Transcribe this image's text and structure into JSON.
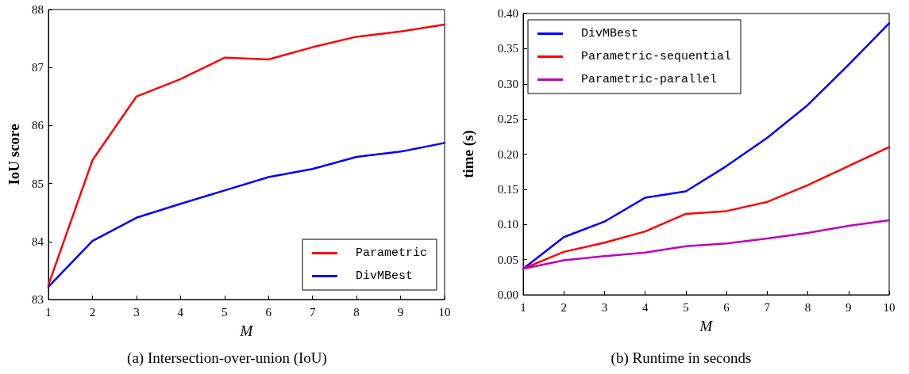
{
  "chart_data": [
    {
      "type": "line",
      "title": "(a) Intersection-over-union (IoU)",
      "xlabel": "M",
      "ylabel": "IoU score",
      "x": [
        1,
        2,
        3,
        4,
        5,
        6,
        7,
        8,
        9,
        10
      ],
      "series": [
        {
          "name": "Parametric",
          "color": "#ff0000",
          "values": [
            83.25,
            85.4,
            86.5,
            86.8,
            87.17,
            87.14,
            87.35,
            87.53,
            87.62,
            87.74
          ]
        },
        {
          "name": "DivMBest",
          "color": "#0000ff",
          "values": [
            83.22,
            84.01,
            84.41,
            84.65,
            84.88,
            85.11,
            85.25,
            85.46,
            85.55,
            85.7
          ]
        }
      ],
      "xlim": [
        1,
        10
      ],
      "xticks": [
        1,
        2,
        3,
        4,
        5,
        6,
        7,
        8,
        9,
        10
      ],
      "ylim": [
        83,
        88
      ],
      "yticks": [
        83,
        84,
        85,
        86,
        87,
        88
      ],
      "grid": false,
      "legend": "bottom right",
      "marker": "none",
      "line_style": "solid"
    },
    {
      "type": "line",
      "title": "(b) Runtime in seconds",
      "xlabel": "M",
      "ylabel": "time (s)",
      "x": [
        1,
        2,
        3,
        4,
        5,
        6,
        7,
        8,
        9,
        10
      ],
      "series": [
        {
          "name": "DivMBest",
          "color": "#0000ff",
          "values": [
            0.037,
            0.082,
            0.104,
            0.138,
            0.147,
            0.183,
            0.223,
            0.27,
            0.327,
            0.386
          ]
        },
        {
          "name": "Parametric-sequential",
          "color": "#ff0000",
          "values": [
            0.037,
            0.061,
            0.074,
            0.09,
            0.115,
            0.119,
            0.132,
            0.156,
            0.183,
            0.21
          ]
        },
        {
          "name": "Parametric-parallel",
          "color": "#bf00bf",
          "values": [
            0.037,
            0.049,
            0.055,
            0.06,
            0.069,
            0.073,
            0.08,
            0.088,
            0.098,
            0.106
          ]
        }
      ],
      "xlim": [
        1,
        10
      ],
      "xticks": [
        1,
        2,
        3,
        4,
        5,
        6,
        7,
        8,
        9,
        10
      ],
      "ylim": [
        0,
        0.4
      ],
      "yticks": [
        {
          "value": 0,
          "label": "0.00"
        },
        {
          "value": 0.05,
          "label": "0.05"
        },
        {
          "value": 0.1,
          "label": "0.10"
        },
        {
          "value": 0.15,
          "label": "0.15"
        },
        {
          "value": 0.2,
          "label": "0.20"
        },
        {
          "value": 0.25,
          "label": "0.25"
        },
        {
          "value": 0.3,
          "label": "0.30"
        },
        {
          "value": 0.35,
          "label": "0.35"
        },
        {
          "value": 0.4,
          "label": "0.40"
        }
      ],
      "grid": false,
      "legend": "top left",
      "marker": "none",
      "line_style": "solid"
    }
  ]
}
